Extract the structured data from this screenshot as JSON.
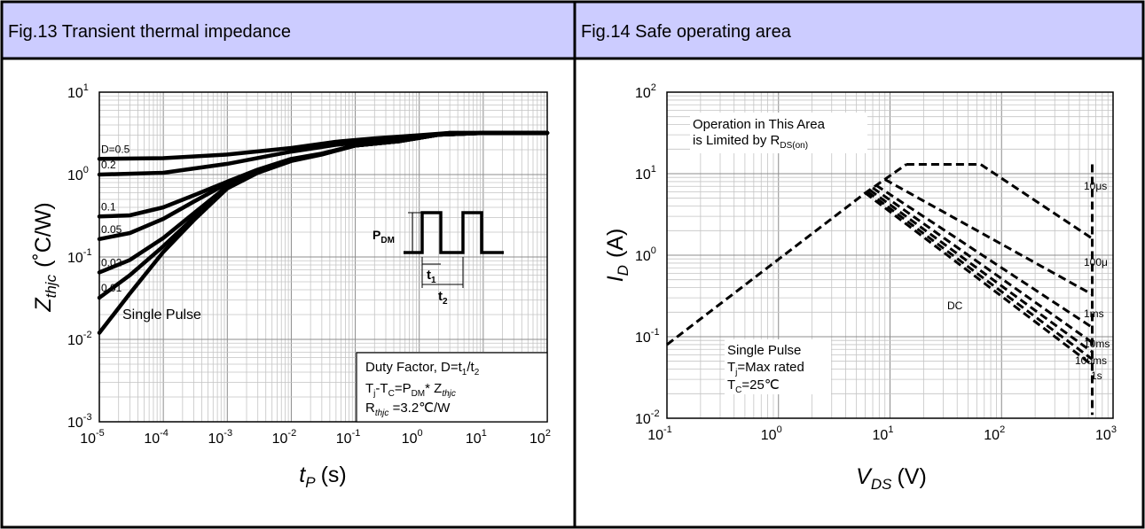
{
  "panels": [
    {
      "header": "Fig.13 Transient thermal impedance"
    },
    {
      "header": "Fig.14 Safe operating area"
    }
  ],
  "chart_data": [
    {
      "type": "line",
      "title": "Fig.13 Transient thermal impedance",
      "xlabel": {
        "main": "t",
        "sub": "P",
        "tail": "(s)"
      },
      "ylabel": {
        "main": "Z",
        "sub": "thjc",
        "tail": "(˚C/W)"
      },
      "x_scale": "log",
      "y_scale": "log",
      "xlim": [
        1e-05,
        100
      ],
      "ylim": [
        0.001,
        10
      ],
      "grid": true,
      "x_ticks": [
        {
          "base": "10",
          "exp": "-5",
          "value": 1e-05
        },
        {
          "base": "10",
          "exp": "-4",
          "value": 0.0001
        },
        {
          "base": "10",
          "exp": "-3",
          "value": 0.001
        },
        {
          "base": "10",
          "exp": "-2",
          "value": 0.01
        },
        {
          "base": "10",
          "exp": "-1",
          "value": 0.1
        },
        {
          "base": "10",
          "exp": "0",
          "value": 1
        },
        {
          "base": "10",
          "exp": "1",
          "value": 10
        },
        {
          "base": "10",
          "exp": "2",
          "value": 100
        }
      ],
      "y_ticks": [
        {
          "base": "10",
          "exp": "-3",
          "value": 0.001
        },
        {
          "base": "10",
          "exp": "-2",
          "value": 0.01
        },
        {
          "base": "10",
          "exp": "-1",
          "value": 0.1
        },
        {
          "base": "10",
          "exp": "0",
          "value": 1
        },
        {
          "base": "10",
          "exp": "1",
          "value": 10
        }
      ],
      "series": [
        {
          "name": "D=0.5",
          "points": [
            [
              1e-05,
              1.55
            ],
            [
              0.0001,
              1.58
            ],
            [
              0.001,
              1.75
            ],
            [
              0.01,
              2.1
            ],
            [
              0.05,
              2.5
            ],
            [
              0.2,
              2.75
            ],
            [
              1,
              3.0
            ],
            [
              3,
              3.2
            ],
            [
              10,
              3.2
            ],
            [
              100,
              3.2
            ]
          ]
        },
        {
          "name": "0.2",
          "points": [
            [
              1e-05,
              1.0
            ],
            [
              0.0001,
              1.05
            ],
            [
              0.001,
              1.35
            ],
            [
              0.01,
              1.9
            ],
            [
              0.05,
              2.3
            ],
            [
              0.2,
              2.55
            ],
            [
              1,
              2.9
            ],
            [
              3,
              3.2
            ],
            [
              10,
              3.2
            ],
            [
              100,
              3.2
            ]
          ]
        },
        {
          "name": "0.1",
          "points": [
            [
              1e-05,
              0.31
            ],
            [
              3e-05,
              0.32
            ],
            [
              0.0001,
              0.4
            ],
            [
              0.0003,
              0.56
            ],
            [
              0.001,
              0.82
            ],
            [
              0.003,
              1.15
            ],
            [
              0.01,
              1.55
            ],
            [
              0.03,
              1.8
            ],
            [
              0.1,
              2.25
            ],
            [
              0.5,
              2.55
            ],
            [
              2,
              3.05
            ],
            [
              10,
              3.2
            ],
            [
              100,
              3.2
            ]
          ]
        },
        {
          "name": "0.05",
          "points": [
            [
              1e-05,
              0.165
            ],
            [
              3e-05,
              0.195
            ],
            [
              0.0001,
              0.29
            ],
            [
              0.0003,
              0.47
            ],
            [
              0.001,
              0.78
            ],
            [
              0.003,
              1.1
            ],
            [
              0.01,
              1.5
            ],
            [
              0.03,
              1.78
            ],
            [
              0.1,
              2.25
            ],
            [
              0.5,
              2.55
            ],
            [
              2,
              3.05
            ],
            [
              10,
              3.2
            ],
            [
              100,
              3.2
            ]
          ]
        },
        {
          "name": "0.02",
          "points": [
            [
              1e-05,
              0.065
            ],
            [
              3e-05,
              0.092
            ],
            [
              0.0001,
              0.17
            ],
            [
              0.0003,
              0.34
            ],
            [
              0.001,
              0.72
            ],
            [
              0.003,
              1.07
            ],
            [
              0.01,
              1.48
            ],
            [
              0.03,
              1.77
            ],
            [
              0.1,
              2.25
            ],
            [
              0.5,
              2.55
            ],
            [
              2,
              3.05
            ],
            [
              10,
              3.2
            ],
            [
              100,
              3.2
            ]
          ]
        },
        {
          "name": "0.01",
          "points": [
            [
              1e-05,
              0.032
            ],
            [
              3e-05,
              0.06
            ],
            [
              0.0001,
              0.135
            ],
            [
              0.0003,
              0.3
            ],
            [
              0.001,
              0.7
            ],
            [
              0.003,
              1.06
            ],
            [
              0.01,
              1.47
            ],
            [
              0.03,
              1.76
            ],
            [
              0.1,
              2.25
            ],
            [
              0.5,
              2.55
            ],
            [
              2,
              3.05
            ],
            [
              10,
              3.2
            ],
            [
              100,
              3.2
            ]
          ]
        },
        {
          "name": "Single Pulse",
          "points": [
            [
              1e-05,
              0.012
            ],
            [
              3e-05,
              0.036
            ],
            [
              0.0001,
              0.115
            ],
            [
              0.0003,
              0.28
            ],
            [
              0.001,
              0.68
            ],
            [
              0.003,
              1.05
            ],
            [
              0.01,
              1.46
            ],
            [
              0.03,
              1.75
            ],
            [
              0.1,
              2.25
            ],
            [
              0.5,
              2.55
            ],
            [
              2,
              3.05
            ],
            [
              10,
              3.2
            ],
            [
              100,
              3.2
            ]
          ]
        }
      ],
      "annotation": {
        "line1": {
          "text": "Duty Factor, D=t",
          "sub": "1",
          "tail": "/t",
          "sub2": "2"
        },
        "line2": {
          "a": "T",
          "a_sub": "j",
          "b": "-T",
          "b_sub": "C",
          "c": "=P",
          "c_sub": "DM",
          "d": "* Z",
          "d_sub": "thjc"
        },
        "line3": {
          "a": "R",
          "a_sub": "thjc",
          "b": " =3.2℃/W"
        }
      },
      "pulse_diagram": {
        "pdm": "P",
        "pdm_sub": "DM",
        "t1": "t",
        "t1_sub": "1",
        "t2": "t",
        "t2_sub": "2"
      }
    },
    {
      "type": "line",
      "title": "Fig.14 Safe operating area",
      "xlabel": {
        "main": "V",
        "sub": "DS",
        "tail": "(V)"
      },
      "ylabel": {
        "main": "I",
        "sub": "D",
        "tail": "(A)"
      },
      "x_scale": "log",
      "y_scale": "log",
      "xlim": [
        0.1,
        1000
      ],
      "ylim": [
        0.01,
        100
      ],
      "grid": true,
      "x_ticks": [
        {
          "base": "10",
          "exp": "-1",
          "value": 0.1
        },
        {
          "base": "10",
          "exp": "0",
          "value": 1
        },
        {
          "base": "10",
          "exp": "1",
          "value": 10
        },
        {
          "base": "10",
          "exp": "2",
          "value": 100
        },
        {
          "base": "10",
          "exp": "3",
          "value": 1000
        }
      ],
      "y_ticks": [
        {
          "base": "10",
          "exp": "-2",
          "value": 0.01
        },
        {
          "base": "10",
          "exp": "-1",
          "value": 0.1
        },
        {
          "base": "10",
          "exp": "0",
          "value": 1
        },
        {
          "base": "10",
          "exp": "1",
          "value": 10
        },
        {
          "base": "10",
          "exp": "2",
          "value": 100
        }
      ],
      "rds_line": [
        [
          0.1,
          0.08
        ],
        [
          6,
          5.8
        ],
        [
          14,
          13
        ]
      ],
      "series": [
        {
          "name": "10μs",
          "points": [
            [
              14,
              13
            ],
            [
              65,
              13
            ],
            [
              650,
              1.6
            ]
          ]
        },
        {
          "name": "100μ",
          "points": [
            [
              9,
              8.5
            ],
            [
              650,
              0.33
            ]
          ]
        },
        {
          "name": "1ms",
          "points": [
            [
              7.5,
              7.2
            ],
            [
              650,
              0.13
            ]
          ]
        },
        {
          "name": "10ms",
          "points": [
            [
              7,
              6.7
            ],
            [
              650,
              0.085
            ]
          ]
        },
        {
          "name": "100ms",
          "points": [
            [
              6.6,
              6.3
            ],
            [
              650,
              0.065
            ]
          ]
        },
        {
          "name": "1s",
          "points": [
            [
              6.3,
              6.0
            ],
            [
              650,
              0.053
            ]
          ]
        },
        {
          "name": "DC",
          "points": [
            [
              6,
              5.8
            ],
            [
              650,
              0.045
            ]
          ]
        }
      ],
      "vds_limit": [
        [
          650,
          13
        ],
        [
          650,
          0.011
        ]
      ],
      "labels": {
        "rds": {
          "line1": "Operation in This Area",
          "line2": "is Limited by R",
          "line2_sub": "DS(on)"
        },
        "dc": "DC",
        "pulse_note": {
          "line1": "Single Pulse",
          "line2": "T",
          "line2_sub": "j",
          "line2_tail": "=Max rated",
          "line3": "T",
          "line3_sub": "C",
          "line3_tail": "=25℃"
        }
      }
    }
  ]
}
